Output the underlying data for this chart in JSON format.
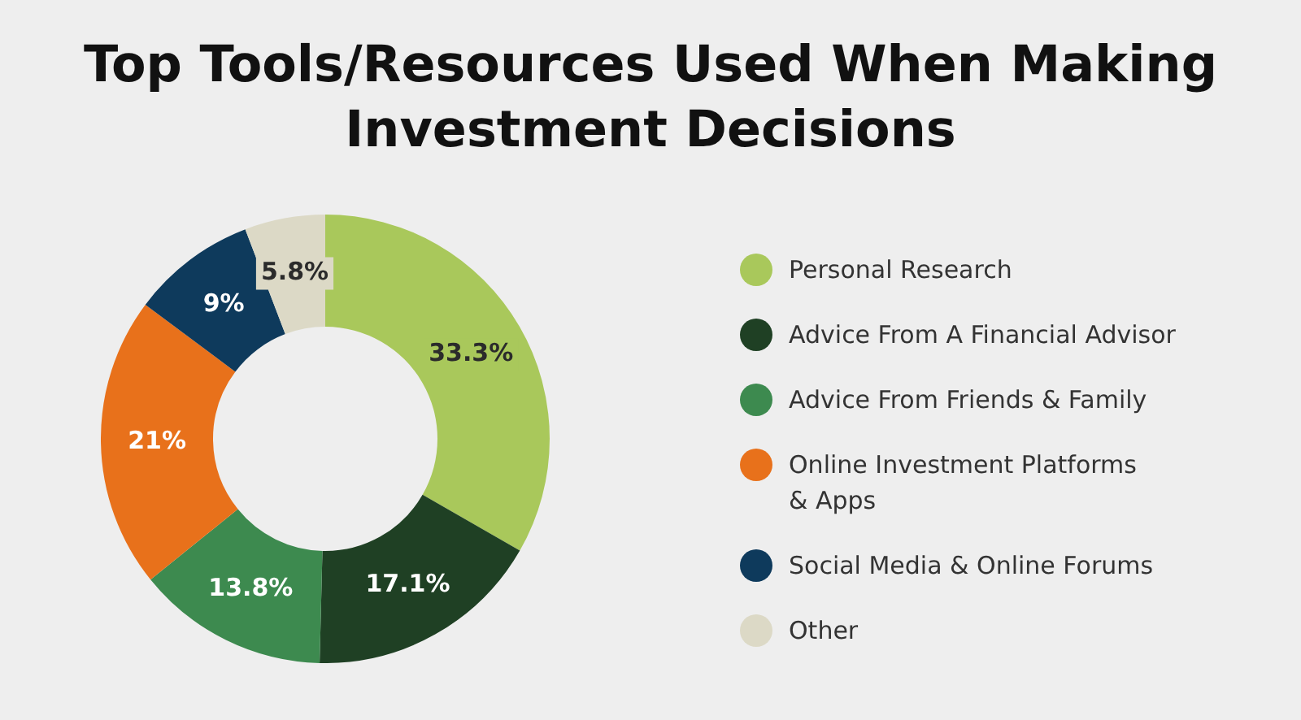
{
  "chart_data": {
    "type": "donut",
    "title": "Top Tools/Resources Used When Making Investment Decisions",
    "categories": [
      "Personal Research",
      "Advice From A Financial Advisor",
      "Advice From Friends & Family",
      "Online Investment Platforms & Apps",
      "Social Media & Online Forums",
      "Other"
    ],
    "values": [
      33.3,
      17.1,
      13.8,
      21,
      9,
      5.8
    ],
    "value_labels": [
      "33.3%",
      "17.1%",
      "13.8%",
      "21%",
      "9%",
      "5.8%"
    ],
    "colors": [
      "#a9c85b",
      "#1f4024",
      "#3d8a4f",
      "#e8711b",
      "#0e3a5c",
      "#dcd9c6"
    ],
    "legend": "right"
  }
}
